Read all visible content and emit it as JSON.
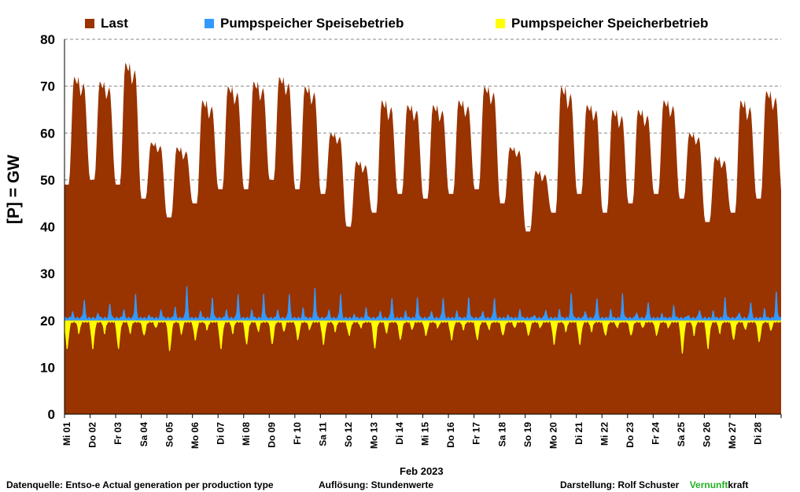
{
  "chart_data": {
    "type": "area",
    "ylabel": "[P] = GW",
    "ylim": [
      0,
      80
    ],
    "yticks": [
      0,
      10,
      20,
      30,
      40,
      50,
      60,
      70,
      80
    ],
    "grid": "horizontal-dashed",
    "legend_position": "top",
    "month_label": "Feb 2023",
    "x_tick_labels": [
      "Mi 01",
      "Do 02",
      "Fr 03",
      "Sa 04",
      "So 05",
      "Mo 06",
      "Di 07",
      "Mi 08",
      "Do 09",
      "Fr 10",
      "Sa 11",
      "So 12",
      "Mo 13",
      "Di 14",
      "Mi 15",
      "Do 16",
      "Fr 17",
      "Sa 18",
      "So 19",
      "Mo 20",
      "Di 21",
      "Mi 22",
      "Do 23",
      "Fr 24",
      "Sa 25",
      "So 26",
      "Mo 27",
      "Di 28"
    ],
    "series": [
      {
        "name": "Last",
        "color": "#993300",
        "baseline": 0,
        "daily_min_gw": [
          49,
          50,
          49,
          46,
          42,
          45,
          48,
          48,
          50,
          48,
          47,
          40,
          43,
          47,
          46,
          47,
          48,
          45,
          39,
          43,
          47,
          43,
          45,
          47,
          46,
          41,
          43,
          46
        ],
        "daily_max_gw": [
          72,
          71,
          75,
          58,
          57,
          67,
          70,
          71,
          72,
          70,
          60,
          54,
          67,
          66,
          66,
          67,
          70,
          57,
          52,
          70,
          66,
          65,
          65,
          67,
          60,
          55,
          67,
          69
        ]
      },
      {
        "name": "Pumpspeicher Speisebetrieb",
        "color": "#3399ff",
        "baseline": 20,
        "daily_peak_gw": [
          24.5,
          23.5,
          26,
          22,
          28,
          25,
          26,
          26,
          26,
          27.5,
          26,
          22.5,
          25,
          25,
          25,
          25,
          25,
          22,
          22,
          26,
          25,
          26,
          24,
          23,
          22,
          25,
          24,
          26.5
        ]
      },
      {
        "name": "Pumpspeicher Speicherbetrieb",
        "color": "#ffff00",
        "baseline": 20,
        "daily_min_gw": [
          14,
          14,
          14,
          17,
          13.5,
          16,
          14,
          15,
          15,
          16,
          15,
          17,
          14,
          16,
          17,
          16,
          16,
          17,
          17,
          15,
          15,
          17,
          17,
          17,
          13,
          14,
          16,
          15.5
        ]
      }
    ]
  },
  "footer": {
    "source": "Datenquelle: Entso-e  Actual generation per production type",
    "resolution": "Auflösung:  Stundenwerte",
    "credit_prefix": "Darstellung:  Rolf Schuster",
    "brand_green": "Vernunft",
    "brand_black": "kraft"
  }
}
